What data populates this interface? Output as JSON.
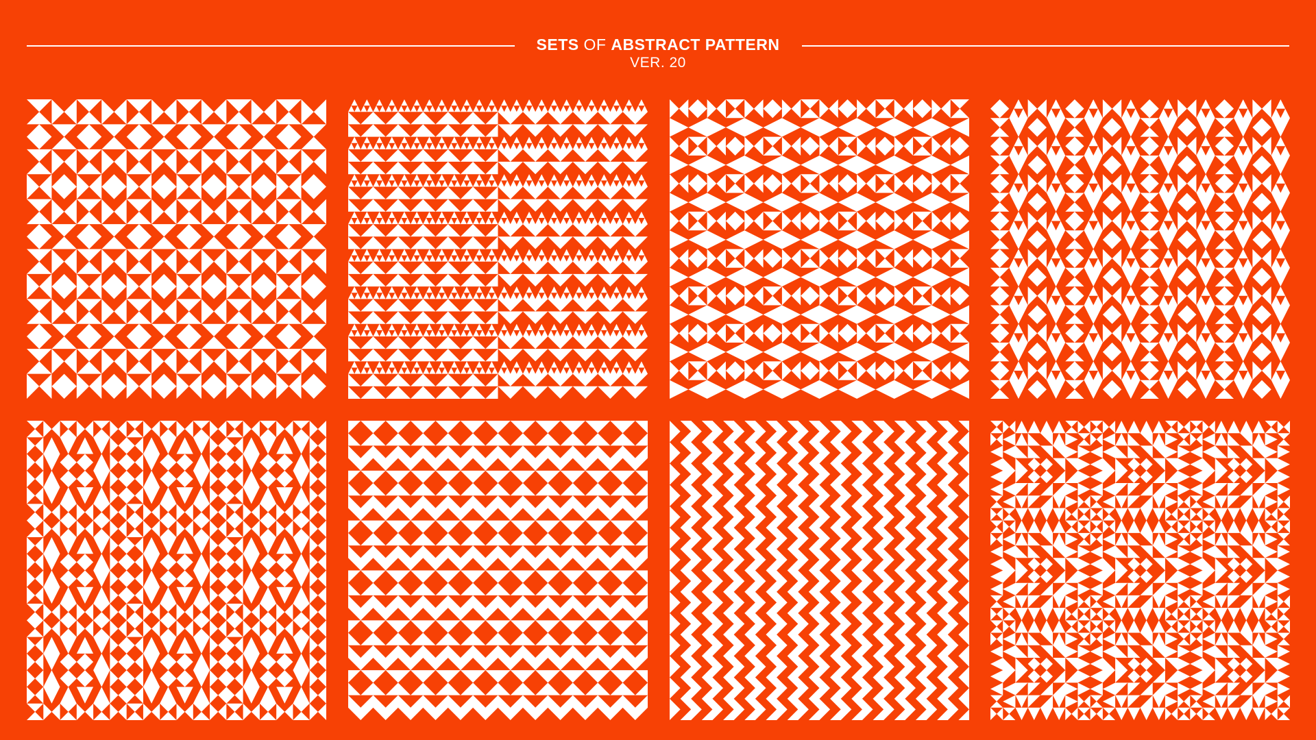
{
  "colors": {
    "background": "#f74105",
    "foreground": "#ffffff"
  },
  "header": {
    "title_part1": "SETS",
    "title_part2": "OF",
    "title_part3": "ABSTRACT PATTERN",
    "subtitle": "VER. 20"
  },
  "patterns": [
    {
      "name": "pattern-1",
      "style": "hourglass-diamond"
    },
    {
      "name": "pattern-2",
      "style": "chevron-triangles"
    },
    {
      "name": "pattern-3",
      "style": "diamond-bowtie"
    },
    {
      "name": "pattern-4",
      "style": "diamond-columns"
    },
    {
      "name": "pattern-5",
      "style": "mixed-diamond"
    },
    {
      "name": "pattern-6",
      "style": "half-square-triangles"
    },
    {
      "name": "pattern-7",
      "style": "fine-triangle-grid"
    },
    {
      "name": "pattern-8",
      "style": "concentric-diamonds"
    }
  ]
}
